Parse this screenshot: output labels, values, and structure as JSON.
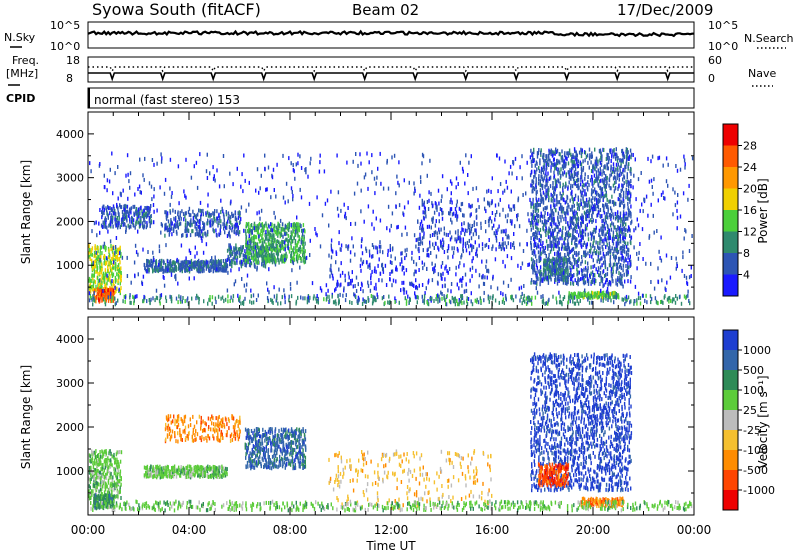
{
  "header": {
    "station": "Syowa South (fitACF)",
    "beam": "Beam 02",
    "date": "17/Dec/2009"
  },
  "panels": {
    "nsky_label": "N.Sky",
    "nsky_ticks": [
      "10^5",
      "10^0"
    ],
    "nsearch_label": "N.Search",
    "nsearch_ticks": [
      "10^5",
      "10^0"
    ],
    "freq_label_line1": "Freq.",
    "freq_label_line2": "[MHz]",
    "freq_ticks": [
      "18",
      "8"
    ],
    "nave_label": "Nave",
    "nave_ticks": [
      "60",
      "0"
    ],
    "cpid_label": "CPID",
    "cpid_text": "normal (fast stereo) 153"
  },
  "chart_data": [
    {
      "type": "heatmap",
      "name": "power",
      "ylabel": "Slant Range [km]",
      "yticks": [
        "1000",
        "2000",
        "3000",
        "4000"
      ],
      "ylim": [
        0,
        4500
      ],
      "xlim": [
        0,
        24
      ],
      "colorbar_label": "Power [dB]",
      "colorbar_ticks": [
        "4",
        "8",
        "12",
        "16",
        "20",
        "24",
        "28"
      ],
      "colorbar_colors": [
        "#1a1aff",
        "#2d55b4",
        "#2f8a6e",
        "#4bcf3a",
        "#f0d000",
        "#ff9800",
        "#ff5a00",
        "#ee0000"
      ],
      "colorbar_range": [
        0,
        32
      ],
      "scatter_regions": [
        {
          "t": [
            0.0,
            1.3
          ],
          "r": [
            400,
            1500
          ],
          "value": 16,
          "density": 0.35
        },
        {
          "t": [
            0.2,
            1.0
          ],
          "r": [
            200,
            500
          ],
          "value": 26,
          "density": 0.6
        },
        {
          "t": [
            0.5,
            2.5
          ],
          "r": [
            1900,
            2400
          ],
          "value": 6,
          "density": 0.35
        },
        {
          "t": [
            2.2,
            5.5
          ],
          "r": [
            900,
            1150
          ],
          "value": 7,
          "density": 0.55
        },
        {
          "t": [
            3.0,
            6.0
          ],
          "r": [
            1700,
            2300
          ],
          "value": 6,
          "density": 0.25
        },
        {
          "t": [
            5.5,
            7.5
          ],
          "r": [
            1000,
            1500
          ],
          "value": 8,
          "density": 0.3
        },
        {
          "t": [
            6.2,
            8.6
          ],
          "r": [
            1100,
            2000
          ],
          "value": 12,
          "density": 0.35
        },
        {
          "t": [
            9.5,
            16.0
          ],
          "r": [
            200,
            1500
          ],
          "value": 4,
          "density": 0.05
        },
        {
          "t": [
            13.0,
            17.0
          ],
          "r": [
            1400,
            2500
          ],
          "value": 5,
          "density": 0.08
        },
        {
          "t": [
            17.5,
            21.5
          ],
          "r": [
            600,
            3700
          ],
          "value": 6,
          "density": 0.22
        },
        {
          "t": [
            18.0,
            19.0
          ],
          "r": [
            700,
            1200
          ],
          "value": 8,
          "density": 0.5
        },
        {
          "t": [
            19.0,
            21.0
          ],
          "r": [
            300,
            420
          ],
          "value": 14,
          "density": 0.7
        },
        {
          "t": [
            0.0,
            24.0
          ],
          "r": [
            150,
            350
          ],
          "value": 10,
          "density": 0.15
        },
        {
          "t": [
            0.0,
            24.0
          ],
          "r": [
            300,
            3600
          ],
          "value": 4,
          "density": 0.02
        }
      ]
    },
    {
      "type": "heatmap",
      "name": "velocity",
      "ylabel": "Slant Range [km]",
      "yticks": [
        "1000",
        "2000",
        "3000",
        "4000"
      ],
      "ylim": [
        0,
        4500
      ],
      "xlim": [
        0,
        24
      ],
      "xlabel": "Time UT",
      "xticks": [
        "00:00",
        "04:00",
        "08:00",
        "12:00",
        "16:00",
        "20:00",
        "00:00"
      ],
      "colorbar_label": "Velocity [m s⁻¹]",
      "colorbar_ticks": [
        "1000",
        "500",
        "100",
        "25",
        "-25",
        "-100",
        "-500",
        "-1000"
      ],
      "colorbar_colors": [
        "#1e3ed0",
        "#3366aa",
        "#2e8b57",
        "#5ccc3a",
        "#bcbcbc",
        "#f5c030",
        "#ff8c00",
        "#ff4500",
        "#ee0000"
      ],
      "scatter_regions": [
        {
          "t": [
            0.0,
            1.3
          ],
          "r": [
            400,
            1500
          ],
          "value": 3,
          "density": 0.35
        },
        {
          "t": [
            0.2,
            1.0
          ],
          "r": [
            200,
            500
          ],
          "value": 2,
          "density": 0.6
        },
        {
          "t": [
            2.2,
            5.5
          ],
          "r": [
            900,
            1150
          ],
          "value": 3,
          "density": 0.55
        },
        {
          "t": [
            3.0,
            6.0
          ],
          "r": [
            1700,
            2300
          ],
          "value": 6,
          "density": 0.2
        },
        {
          "t": [
            6.2,
            8.6
          ],
          "r": [
            1100,
            2000
          ],
          "value": 1,
          "density": 0.35
        },
        {
          "t": [
            9.5,
            16.0
          ],
          "r": [
            200,
            1500
          ],
          "value": 5,
          "density": 0.05
        },
        {
          "t": [
            17.5,
            21.5
          ],
          "r": [
            600,
            3700
          ],
          "value": 0,
          "density": 0.2
        },
        {
          "t": [
            17.8,
            19.0
          ],
          "r": [
            700,
            1200
          ],
          "value": 7,
          "density": 0.45
        },
        {
          "t": [
            19.5,
            21.2
          ],
          "r": [
            250,
            420
          ],
          "value": 6,
          "density": 0.7
        },
        {
          "t": [
            0.0,
            24.0
          ],
          "r": [
            150,
            350
          ],
          "value": 3,
          "density": 0.2
        }
      ]
    }
  ]
}
